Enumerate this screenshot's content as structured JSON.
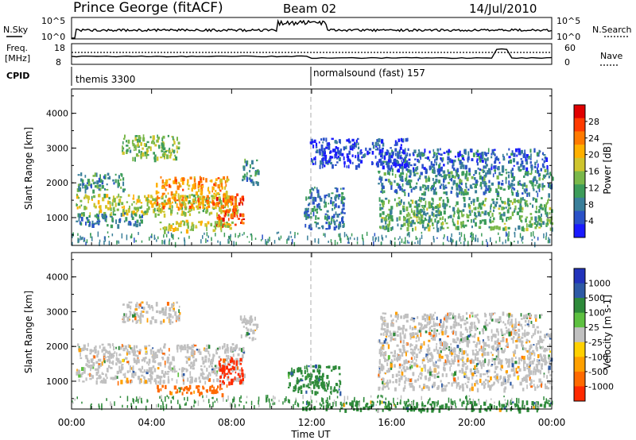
{
  "header": {
    "station": "Prince George (fitACF)",
    "beam": "Beam 02",
    "date": "14/Jul/2010"
  },
  "status_panels": {
    "nsky_label": "N.Sky",
    "nsky_ticks": [
      "10^5",
      "10^0"
    ],
    "nsearch_label": "N.Search",
    "nsearch_ticks": [
      "10^5",
      "10^0"
    ],
    "freq_label": "Freq.",
    "freq_unit": "[MHz]",
    "freq_ticks": [
      "18",
      "8"
    ],
    "nave_label": "Nave",
    "nave_ticks": [
      "60",
      "0"
    ],
    "cpid_label": "CPID",
    "cpid_segments": [
      {
        "start_hour": 0,
        "name": "themis 3300"
      },
      {
        "start_hour": 12,
        "name": "normalsound (fast) 157"
      }
    ]
  },
  "chart_data": [
    {
      "type": "heatmap",
      "title": "",
      "xlabel": "Time UT",
      "ylabel": "Slant Range [km]",
      "xlim_hours": [
        0,
        24
      ],
      "x_tick_labels": [
        "00:00",
        "04:00",
        "08:00",
        "12:00",
        "16:00",
        "20:00",
        "00:00"
      ],
      "ylim": [
        200,
        4700
      ],
      "y_ticks": [
        1000,
        2000,
        3000,
        4000
      ],
      "colorbar": {
        "label": "Power [dB]",
        "ticks": [
          "4",
          "8",
          "12",
          "16",
          "20",
          "24",
          "28"
        ],
        "colors": [
          "#1a1aff",
          "#2a52c8",
          "#3a7f9a",
          "#3d9c5a",
          "#7ab84a",
          "#cfc52e",
          "#ffb000",
          "#ff7a00",
          "#ff3a00",
          "#e00000"
        ]
      },
      "regions": [
        {
          "x": [
            0.2,
            8.3
          ],
          "y": [
            1100,
            1700
          ],
          "level": 16
        },
        {
          "x": [
            4.2,
            7.8
          ],
          "y": [
            1300,
            2200
          ],
          "level": 22
        },
        {
          "x": [
            7.2,
            8.6
          ],
          "y": [
            800,
            1700
          ],
          "level": 26
        },
        {
          "x": [
            4.2,
            8.0
          ],
          "y": [
            650,
            950
          ],
          "level": 18
        },
        {
          "x": [
            0.2,
            3.5
          ],
          "y": [
            800,
            1150
          ],
          "level": 8
        },
        {
          "x": [
            0.2,
            2.6
          ],
          "y": [
            1800,
            2300
          ],
          "level": 10
        },
        {
          "x": [
            2.5,
            5.4
          ],
          "y": [
            2700,
            3400
          ],
          "level": 14
        },
        {
          "x": [
            8.5,
            9.3
          ],
          "y": [
            2000,
            2700
          ],
          "level": 10
        },
        {
          "x": [
            11.6,
            13.6
          ],
          "y": [
            700,
            1900
          ],
          "level": 8
        },
        {
          "x": [
            15.3,
            24.0
          ],
          "y": [
            700,
            1600
          ],
          "level": 12
        },
        {
          "x": [
            15.3,
            24.0
          ],
          "y": [
            1700,
            2400
          ],
          "level": 9
        },
        {
          "x": [
            15.5,
            23.8
          ],
          "y": [
            2400,
            3000
          ],
          "level": 6
        },
        {
          "x": [
            11.9,
            16.8
          ],
          "y": [
            2500,
            3300
          ],
          "level": 4
        }
      ]
    },
    {
      "type": "heatmap",
      "title": "",
      "xlabel": "Time UT",
      "ylabel": "Slant Range [km]",
      "xlim_hours": [
        0,
        24
      ],
      "x_tick_labels": [
        "00:00",
        "04:00",
        "08:00",
        "12:00",
        "16:00",
        "20:00",
        "00:00"
      ],
      "ylim": [
        200,
        4700
      ],
      "y_ticks": [
        1000,
        2000,
        3000,
        4000
      ],
      "colorbar": {
        "label": "Velocity [m s-1]",
        "ticks": [
          "1000",
          "500",
          "100",
          "25",
          "-25",
          "-100",
          "-500",
          "-1000"
        ],
        "colors": [
          "#2233bb",
          "#2e5aa5",
          "#2e8a3a",
          "#5dc040",
          "#c0c0c0",
          "#ffd000",
          "#ffa000",
          "#ff6a00",
          "#ff2a00"
        ]
      },
      "regions": [
        {
          "x": [
            0.2,
            8.6
          ],
          "y": [
            1000,
            2100
          ],
          "level": 0
        },
        {
          "x": [
            2.5,
            5.4
          ],
          "y": [
            2700,
            3300
          ],
          "level": 0
        },
        {
          "x": [
            7.3,
            8.6
          ],
          "y": [
            900,
            1700
          ],
          "level": -800
        },
        {
          "x": [
            4.2,
            7.6
          ],
          "y": [
            650,
            900
          ],
          "level": -300
        },
        {
          "x": [
            8.4,
            9.3
          ],
          "y": [
            2200,
            2900
          ],
          "level": 0
        },
        {
          "x": [
            10.8,
            13.4
          ],
          "y": [
            700,
            1500
          ],
          "level": 300
        },
        {
          "x": [
            15.3,
            24.0
          ],
          "y": [
            800,
            2400
          ],
          "level": 0
        },
        {
          "x": [
            15.4,
            23.5
          ],
          "y": [
            2400,
            3000
          ],
          "level": 0
        },
        {
          "x": [
            11.5,
            24.0
          ],
          "y": [
            200,
            450
          ],
          "level": 200
        }
      ]
    }
  ]
}
